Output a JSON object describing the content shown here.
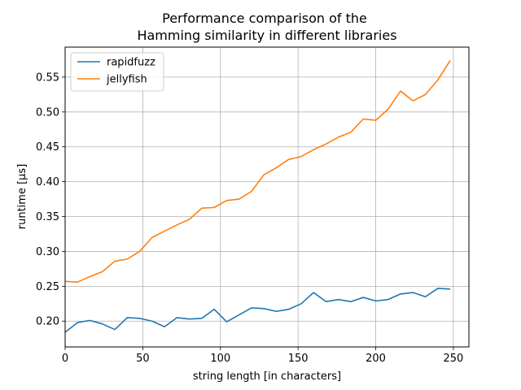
{
  "chart_data": {
    "type": "line",
    "title": [
      "Performance comparison of the",
      "Hamming similarity in different libraries"
    ],
    "xlabel": "string length [in characters]",
    "ylabel": "runtime [µs]",
    "xlim": [
      0,
      260
    ],
    "ylim": [
      0.163,
      0.593
    ],
    "xticks": [
      0,
      50,
      100,
      150,
      200,
      250
    ],
    "yticks": [
      0.2,
      0.25,
      0.3,
      0.35,
      0.4,
      0.45,
      0.5,
      0.55
    ],
    "ytick_labels": [
      "0.20",
      "0.25",
      "0.30",
      "0.35",
      "0.40",
      "0.45",
      "0.50",
      "0.55"
    ],
    "grid": true,
    "legend_position": "upper left",
    "x": [
      0,
      8,
      16,
      24,
      32,
      40,
      48,
      56,
      64,
      72,
      80,
      88,
      96,
      104,
      112,
      120,
      128,
      136,
      144,
      152,
      160,
      168,
      176,
      184,
      192,
      200,
      208,
      216,
      224,
      232,
      240,
      248
    ],
    "series": [
      {
        "name": "rapidfuzz",
        "color": "#1f77b4",
        "values": [
          0.184,
          0.198,
          0.201,
          0.196,
          0.188,
          0.205,
          0.204,
          0.2,
          0.192,
          0.205,
          0.203,
          0.204,
          0.217,
          0.199,
          0.209,
          0.219,
          0.218,
          0.214,
          0.217,
          0.225,
          0.241,
          0.228,
          0.231,
          0.228,
          0.234,
          0.229,
          0.231,
          0.239,
          0.241,
          0.235,
          0.247,
          0.246
        ]
      },
      {
        "name": "jellyfish",
        "color": "#ff7f0e",
        "values": [
          0.257,
          0.256,
          0.264,
          0.271,
          0.286,
          0.289,
          0.3,
          0.32,
          0.329,
          0.338,
          0.346,
          0.362,
          0.363,
          0.373,
          0.375,
          0.386,
          0.41,
          0.42,
          0.432,
          0.436,
          0.446,
          0.454,
          0.464,
          0.471,
          0.49,
          0.488,
          0.504,
          0.53,
          0.516,
          0.525,
          0.546,
          0.574
        ]
      }
    ]
  }
}
